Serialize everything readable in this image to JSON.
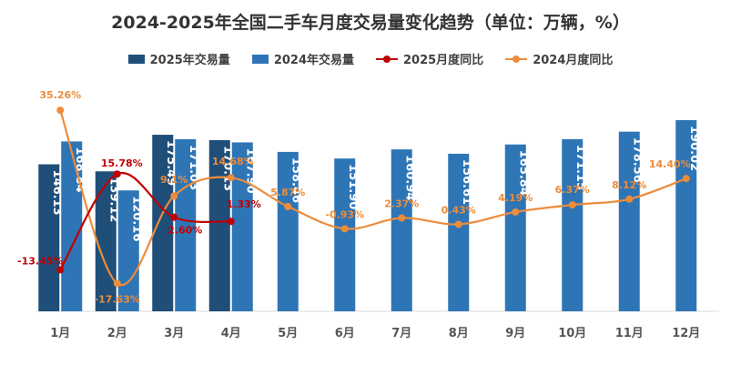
{
  "chart_data": {
    "type": "bar",
    "title": "2024-2025年全国二手车月度交易量变化趋势（单位：万辆，%）",
    "categories": [
      "1月",
      "2月",
      "3月",
      "4月",
      "5月",
      "6月",
      "7月",
      "8月",
      "9月",
      "10月",
      "11月",
      "12月"
    ],
    "series": [
      {
        "name": "2025年交易量",
        "kind": "bar",
        "color": "#1f4e79",
        "values": [
          146.13,
          139.12,
          175.49,
          170.13,
          null,
          null,
          null,
          null,
          null,
          null,
          null,
          null
        ],
        "labels": [
          "146.13",
          "139.12",
          "175.49",
          "170.13"
        ]
      },
      {
        "name": "2024年交易量",
        "kind": "bar",
        "color": "#2e75b6",
        "values": [
          168.84,
          120.16,
          171.03,
          167.9,
          158.46,
          151.9,
          160.94,
          156.61,
          165.84,
          171.15,
          178.56,
          190.02
        ],
        "labels": [
          "168.84",
          "120.16",
          "171.03",
          "167.90",
          "158.46",
          "151.90",
          "160.94",
          "156.61",
          "165.84",
          "171.15",
          "178.56",
          "190.02"
        ]
      },
      {
        "name": "2025月度同比",
        "kind": "line",
        "color": "#c00000",
        "values": [
          -13.45,
          15.78,
          2.6,
          1.33,
          null,
          null,
          null,
          null,
          null,
          null,
          null,
          null
        ],
        "labels": [
          "-13.45%",
          "15.78%",
          "2.60%",
          "1.33%"
        ]
      },
      {
        "name": "2024月度同比",
        "kind": "line",
        "color": "#ed8c3a",
        "values": [
          35.26,
          -17.63,
          9.1,
          14.68,
          5.87,
          -0.93,
          2.37,
          0.43,
          4.19,
          6.37,
          8.12,
          14.4
        ],
        "labels": [
          "35.26%",
          "-17.63%",
          "9.1%",
          "14.68%",
          "5.87%",
          "-0.93%",
          "2.37%",
          "0.43%",
          "4.19%",
          "6.37%",
          "8.12%",
          "14.40%"
        ]
      }
    ],
    "legend_position": "top"
  }
}
